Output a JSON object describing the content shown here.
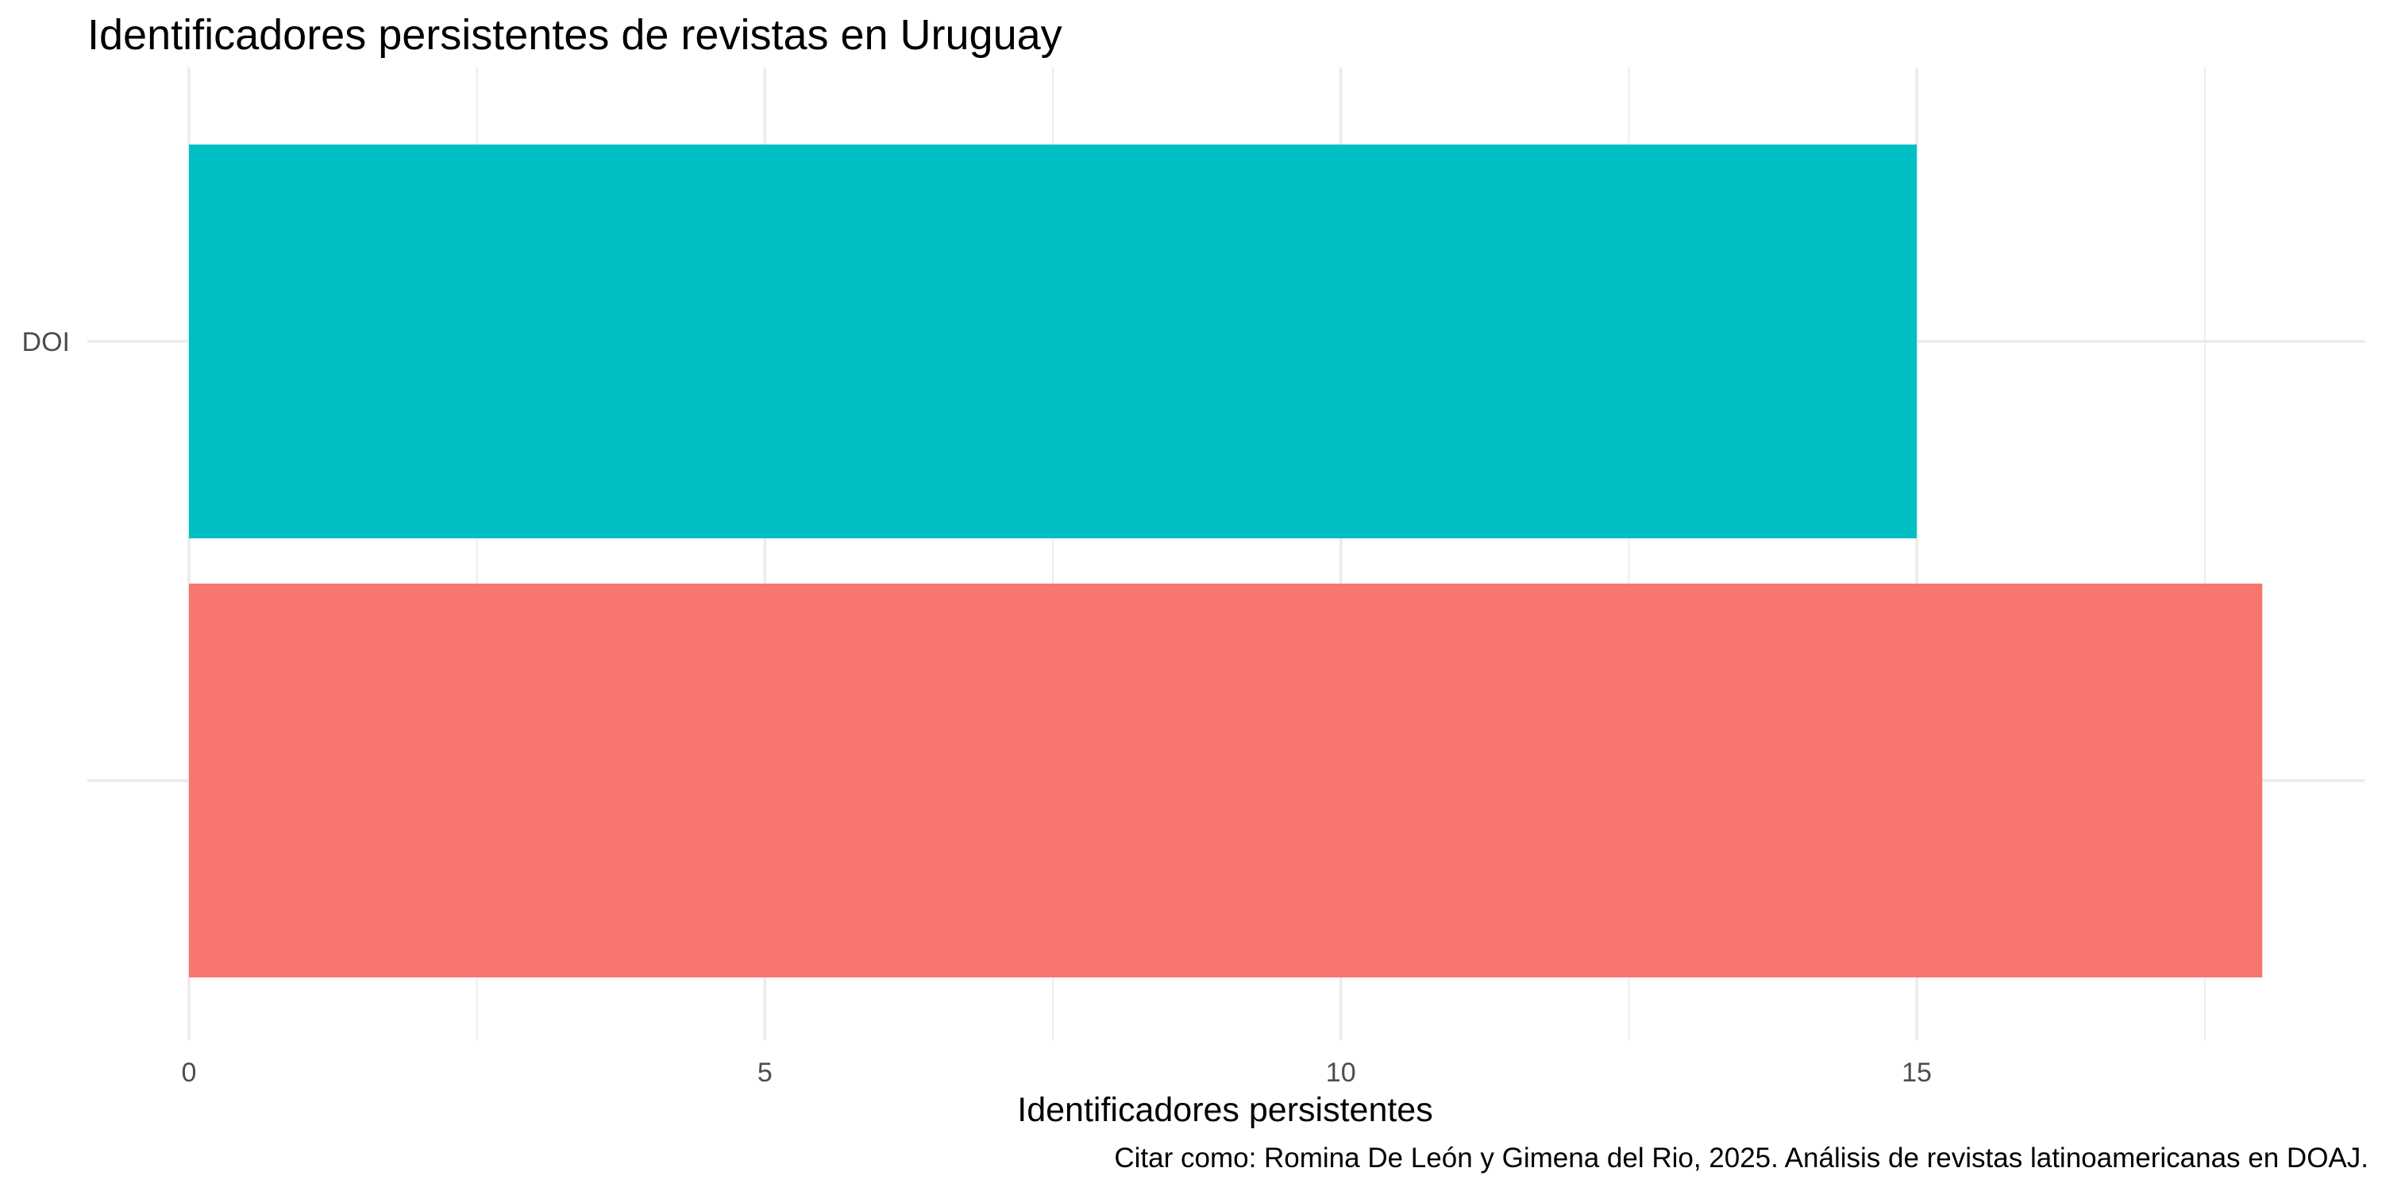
{
  "chart_data": {
    "type": "bar",
    "orientation": "horizontal",
    "title": "Identificadores persistentes de revistas en Uruguay",
    "xlabel": "Identificadores persistentes",
    "ylabel": "",
    "caption": "Citar como: Romina De León y Gimena del Rio, 2025. Análisis de revistas latinoamericanas en DOAJ.",
    "categories": [
      "DOI",
      ""
    ],
    "values": [
      15,
      18
    ],
    "colors": [
      "#00BFC4",
      "#F8766D"
    ],
    "xlim": [
      0,
      18
    ],
    "x_ticks": [
      0,
      5,
      10,
      15
    ],
    "x_tick_labels": [
      "0",
      "5",
      "10",
      "15"
    ],
    "grid": true,
    "legend": "none"
  }
}
